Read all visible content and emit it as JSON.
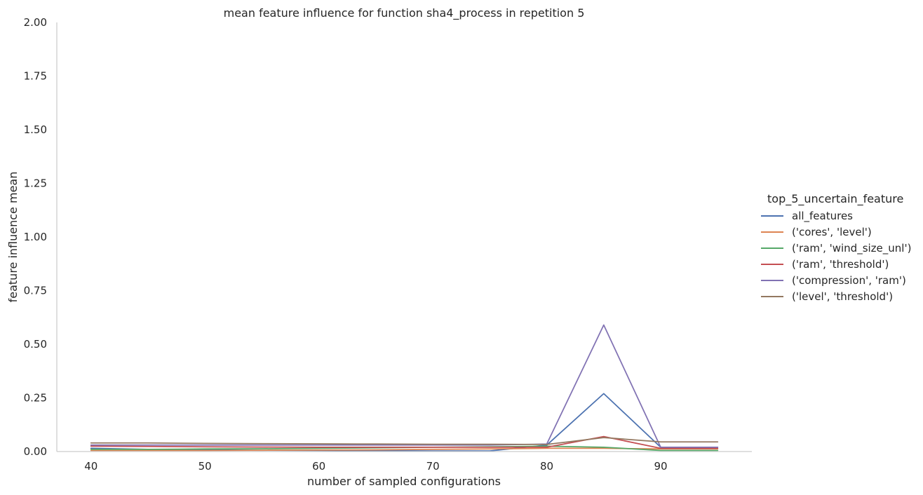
{
  "chart_data": {
    "type": "line",
    "title": "mean feature influence for function sha4_process in repetition 5",
    "xlabel": "number of sampled configurations",
    "ylabel": "feature influence mean",
    "xlim": [
      37,
      98
    ],
    "ylim": [
      0,
      2.0
    ],
    "xticks": [
      40,
      50,
      60,
      70,
      80,
      90
    ],
    "xtick_labels": [
      "40",
      "50",
      "60",
      "70",
      "80",
      "90"
    ],
    "yticks": [
      0,
      0.25,
      0.5,
      0.75,
      1.0,
      1.25,
      1.5,
      1.75,
      2.0
    ],
    "ytick_labels": [
      "0.00",
      "0.25",
      "0.50",
      "0.75",
      "1.00",
      "1.25",
      "1.50",
      "1.75",
      "2.00"
    ],
    "grid": false,
    "legend": {
      "title": "top_5_uncertain_feature",
      "placement": "right"
    },
    "x": [
      40,
      45,
      50,
      55,
      60,
      65,
      70,
      75,
      80,
      85,
      90,
      95
    ],
    "series": [
      {
        "name": "all_features",
        "color": "#4c72b0",
        "values": [
          0.015,
          0.01,
          0.008,
          0.006,
          0.005,
          0.004,
          0.003,
          0.003,
          0.03,
          0.27,
          0.02,
          0.02
        ]
      },
      {
        "name": "('cores', 'level')",
        "color": "#dd8452",
        "values": [
          0.005,
          0.005,
          0.005,
          0.006,
          0.007,
          0.008,
          0.01,
          0.012,
          0.015,
          0.015,
          0.012,
          0.012
        ]
      },
      {
        "name": "('ram', 'wind_size_unl')",
        "color": "#55a868",
        "values": [
          0.01,
          0.01,
          0.012,
          0.013,
          0.015,
          0.017,
          0.02,
          0.022,
          0.025,
          0.02,
          0.005,
          0.005
        ]
      },
      {
        "name": "('ram', 'threshold')",
        "color": "#c44e52",
        "values": [
          0.025,
          0.024,
          0.022,
          0.021,
          0.02,
          0.02,
          0.02,
          0.02,
          0.02,
          0.07,
          0.015,
          0.015
        ]
      },
      {
        "name": "('compression', 'ram')",
        "color": "#8172b3",
        "values": [
          0.03,
          0.03,
          0.03,
          0.03,
          0.03,
          0.03,
          0.03,
          0.03,
          0.035,
          0.59,
          0.02,
          0.02
        ]
      },
      {
        "name": "('level', 'threshold')",
        "color": "#937860",
        "values": [
          0.04,
          0.04,
          0.038,
          0.037,
          0.036,
          0.035,
          0.034,
          0.034,
          0.033,
          0.065,
          0.045,
          0.045
        ]
      }
    ]
  }
}
